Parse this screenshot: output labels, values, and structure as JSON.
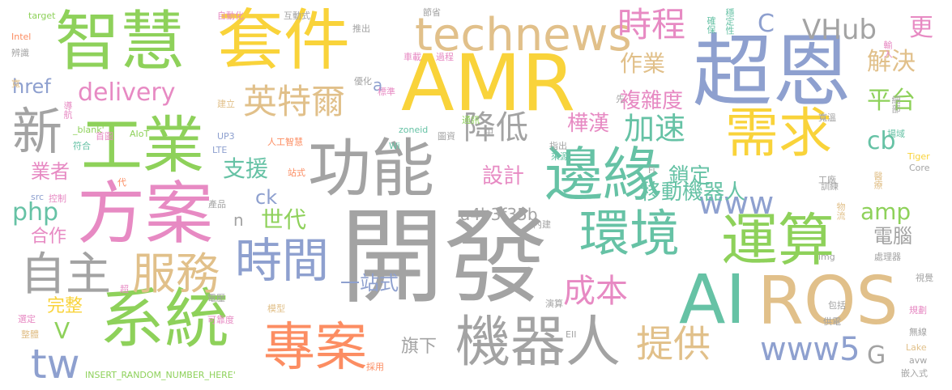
{
  "palette": {
    "gray": "#a3a3a3",
    "green": "#8ed15a",
    "yellow": "#f9d33a",
    "tan": "#e1c08a",
    "blue": "#8ea0cf",
    "pink": "#e78ac3",
    "teal": "#66c2a5",
    "orange": "#fc8d62"
  },
  "words": [
    {
      "text": "開發",
      "color": "gray"
    },
    {
      "text": "AMR",
      "color": "yellow"
    },
    {
      "text": "超恩",
      "color": "blue"
    },
    {
      "text": "套件",
      "color": "yellow"
    },
    {
      "text": "智慧",
      "color": "green"
    },
    {
      "text": "方案",
      "color": "pink"
    },
    {
      "text": "工業",
      "color": "green"
    },
    {
      "text": "新",
      "color": "gray"
    },
    {
      "text": "功能",
      "color": "gray"
    },
    {
      "text": "邊緣",
      "color": "teal"
    },
    {
      "text": "需求",
      "color": "yellow"
    },
    {
      "text": "運算",
      "color": "green"
    },
    {
      "text": "AI",
      "color": "teal"
    },
    {
      "text": "ROS",
      "color": "tan"
    },
    {
      "text": "環境",
      "color": "teal"
    },
    {
      "text": "系統",
      "color": "green"
    },
    {
      "text": "專案",
      "color": "orange"
    },
    {
      "text": "機器人",
      "color": "gray"
    },
    {
      "text": "時間",
      "color": "blue"
    },
    {
      "text": "自主",
      "color": "gray"
    },
    {
      "text": "服務",
      "color": "tan"
    },
    {
      "text": "technews",
      "color": "tan"
    },
    {
      "text": "時程",
      "color": "pink"
    },
    {
      "text": "英特爾",
      "color": "tan"
    },
    {
      "text": "降低",
      "color": "gray"
    },
    {
      "text": "加速",
      "color": "teal"
    },
    {
      "text": "www",
      "color": "blue"
    },
    {
      "text": "www5",
      "color": "blue"
    },
    {
      "text": "提供",
      "color": "tan"
    },
    {
      "text": "成本",
      "color": "pink"
    },
    {
      "text": "tw",
      "color": "blue"
    },
    {
      "text": "VHub",
      "color": "gray"
    },
    {
      "text": "C",
      "color": "blue"
    },
    {
      "text": "更",
      "color": "pink"
    },
    {
      "text": "解決",
      "color": "tan"
    },
    {
      "text": "平台",
      "color": "green"
    },
    {
      "text": "cb",
      "color": "teal"
    },
    {
      "text": "delivery",
      "color": "pink"
    },
    {
      "text": "作業",
      "color": "tan"
    },
    {
      "text": "複雜度",
      "color": "pink"
    },
    {
      "text": "樺漢",
      "color": "pink"
    },
    {
      "text": "支援",
      "color": "teal"
    },
    {
      "text": "設計",
      "color": "pink"
    },
    {
      "text": "鎖定",
      "color": "teal"
    },
    {
      "text": "移動機器人",
      "color": "teal"
    },
    {
      "text": "amp",
      "color": "green"
    },
    {
      "text": "電腦",
      "color": "gray"
    },
    {
      "text": "php",
      "color": "teal"
    },
    {
      "text": "href",
      "color": "blue"
    },
    {
      "text": "業者",
      "color": "pink"
    },
    {
      "text": "世代",
      "color": "green"
    },
    {
      "text": "ck",
      "color": "blue"
    },
    {
      "text": "a4b3f35b",
      "color": "gray"
    },
    {
      "text": "n",
      "color": "gray"
    },
    {
      "text": "一站式",
      "color": "blue"
    },
    {
      "text": "合作",
      "color": "pink"
    },
    {
      "text": "完整",
      "color": "yellow"
    },
    {
      "text": "V",
      "color": "green"
    },
    {
      "text": "旗下",
      "color": "gray"
    },
    {
      "text": "G",
      "color": "gray"
    },
    {
      "text": "a",
      "color": "blue"
    },
    {
      "text": "target",
      "color": "green"
    },
    {
      "text": "自動化",
      "color": "pink"
    },
    {
      "text": "互動式",
      "color": "gray"
    },
    {
      "text": "節省",
      "color": "gray"
    },
    {
      "text": "確保",
      "color": "teal"
    },
    {
      "text": "穩定性",
      "color": "teal"
    },
    {
      "text": "Intel",
      "color": "orange"
    },
    {
      "text": "推出",
      "color": "gray"
    },
    {
      "text": "辨識",
      "color": "gray"
    },
    {
      "text": "車載",
      "color": "pink"
    },
    {
      "text": "過程",
      "color": "pink"
    },
    {
      "text": "輸入",
      "color": "pink"
    },
    {
      "text": "寬",
      "color": "tan"
    },
    {
      "text": "優化",
      "color": "gray"
    },
    {
      "text": "標準",
      "color": "pink"
    },
    {
      "text": "導航",
      "color": "pink"
    },
    {
      "text": "建立",
      "color": "tan"
    },
    {
      "text": "先",
      "color": "gray"
    },
    {
      "text": "AIoT",
      "color": "green"
    },
    {
      "text": "通訊",
      "color": "green"
    },
    {
      "text": "首圖",
      "color": "pink"
    },
    {
      "text": "_blank'",
      "color": "green"
    },
    {
      "text": "UP3",
      "color": "blue"
    },
    {
      "text": "中",
      "color": "gray"
    },
    {
      "text": "zoneid",
      "color": "teal"
    },
    {
      "text": "寬溫",
      "color": "gray"
    },
    {
      "text": "細部",
      "color": "gray"
    },
    {
      "text": "符合",
      "color": "teal"
    },
    {
      "text": "LTE",
      "color": "blue"
    },
    {
      "text": "人工智慧",
      "color": "orange"
    },
    {
      "text": "Wi",
      "color": "teal"
    },
    {
      "text": "指出",
      "color": "gray"
    },
    {
      "text": "圖資",
      "color": "gray"
    },
    {
      "text": "場域",
      "color": "teal"
    },
    {
      "text": "來源",
      "color": "teal"
    },
    {
      "text": "Tiger",
      "color": "yellow"
    },
    {
      "text": "Core",
      "color": "gray"
    },
    {
      "text": "Fi",
      "color": "gray"
    },
    {
      "text": "站式",
      "color": "orange"
    },
    {
      "text": "工廠",
      "color": "gray"
    },
    {
      "text": "醫療",
      "color": "tan"
    },
    {
      "text": "代",
      "color": "orange"
    },
    {
      "text": "src",
      "color": "blue"
    },
    {
      "text": "控制",
      "color": "pink"
    },
    {
      "text": "訓練",
      "color": "gray"
    },
    {
      "text": "產品",
      "color": "gray"
    },
    {
      "text": "物流",
      "color": "tan"
    },
    {
      "text": "內建",
      "color": "gray"
    },
    {
      "text": "img",
      "color": "gray"
    },
    {
      "text": "處理器",
      "color": "gray"
    },
    {
      "text": "視覺",
      "color": "gray"
    },
    {
      "text": "超",
      "color": "pink"
    },
    {
      "text": "電壓",
      "color": "gray"
    },
    {
      "text": "模型",
      "color": "tan"
    },
    {
      "text": "可靠度",
      "color": "pink"
    },
    {
      "text": "選定",
      "color": "pink"
    },
    {
      "text": "演算",
      "color": "gray"
    },
    {
      "text": "包括",
      "color": "gray"
    },
    {
      "text": "規劃",
      "color": "pink"
    },
    {
      "text": "整體",
      "color": "tan"
    },
    {
      "text": "供電",
      "color": "gray"
    },
    {
      "text": "無線",
      "color": "gray"
    },
    {
      "text": "INSERT_RANDOM_NUMBER_HERE'",
      "color": "green"
    },
    {
      "text": "採用",
      "color": "orange"
    },
    {
      "text": "EII",
      "color": "gray"
    },
    {
      "text": "Lake",
      "color": "tan"
    },
    {
      "text": "avw",
      "color": "gray"
    },
    {
      "text": "嵌入式",
      "color": "gray"
    }
  ]
}
